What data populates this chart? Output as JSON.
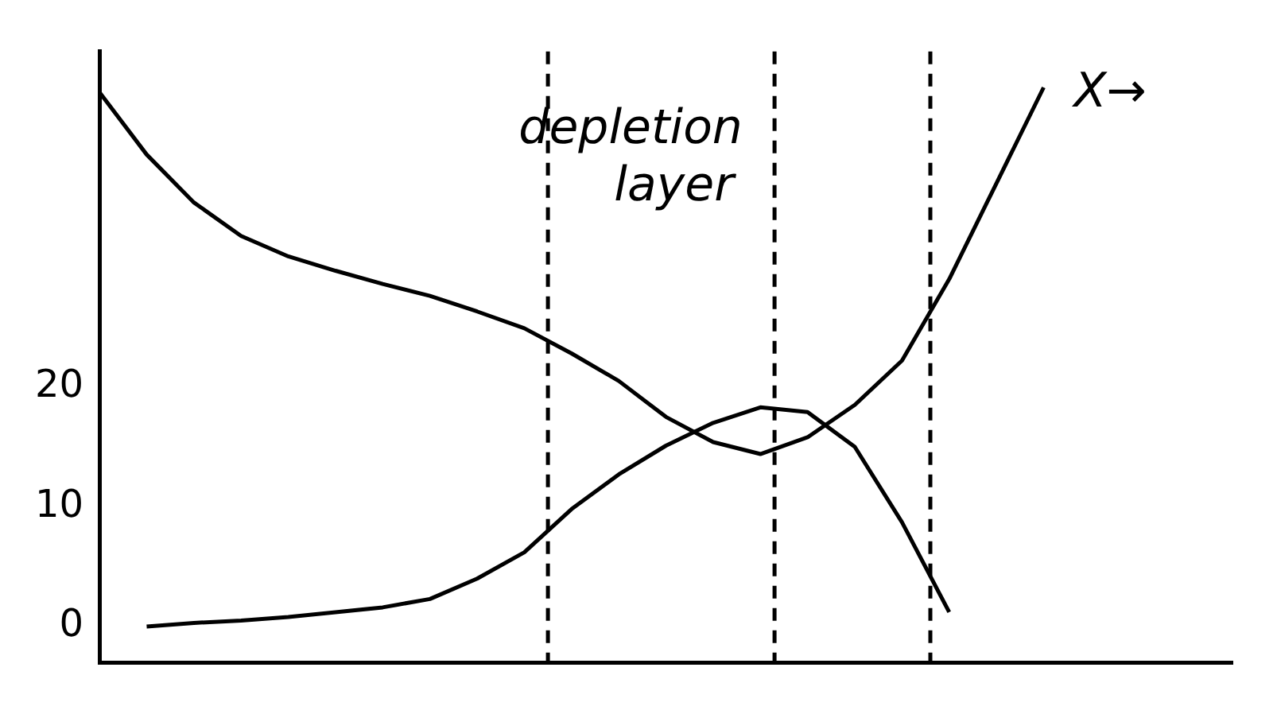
{
  "chart_data": {
    "type": "line",
    "categories": [
      null,
      null,
      null,
      null,
      null,
      null,
      null,
      null,
      null,
      null,
      null,
      null,
      null,
      null,
      null,
      null,
      null,
      null,
      null,
      null,
      null,
      null,
      null,
      null,
      null
    ],
    "ylim": [
      -3,
      48
    ],
    "yticks": [
      0,
      10,
      20
    ],
    "tick_labels": "y",
    "grid": false,
    "legend": false,
    "marker": "none",
    "line_style": "solid",
    "annotations": [
      "depletion layer",
      "X→"
    ],
    "series": [
      {
        "color": "#000000",
        "values": [
          44.6,
          39.4,
          35.4,
          32.6,
          30.9,
          29.7,
          28.6,
          27.6,
          26.3,
          24.9,
          22.8,
          20.5,
          17.5,
          15.4,
          14.4,
          15.8,
          18.5,
          22.2,
          29,
          37,
          45,
          null,
          null,
          null,
          null
        ]
      },
      {
        "color": "#000000",
        "values": [
          null,
          0,
          0.3,
          0.5,
          0.8,
          1.2,
          1.6,
          2.3,
          4,
          6.2,
          9.8,
          12.7,
          15.1,
          17,
          18.3,
          17.9,
          15,
          8.7,
          1.2,
          null,
          null,
          null,
          null,
          null,
          null
        ]
      }
    ]
  }
}
